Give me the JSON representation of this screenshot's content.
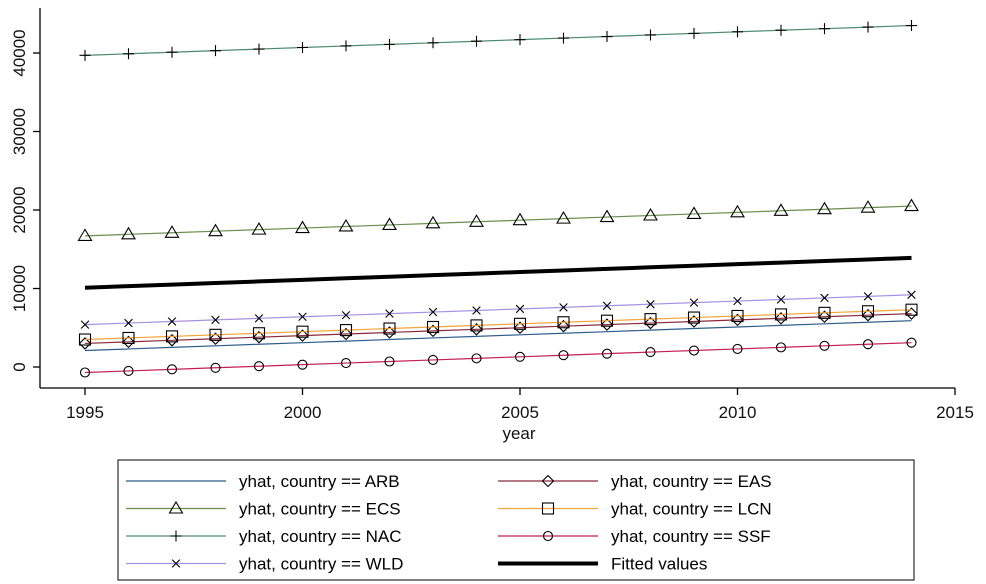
{
  "chart_data": {
    "type": "line",
    "title": "",
    "xlabel": "year",
    "ylabel": "",
    "xlim": [
      1995,
      2015
    ],
    "ylim": [
      0,
      40000
    ],
    "x_ticks": [
      "1995",
      "2000",
      "2005",
      "2010",
      "2015"
    ],
    "y_ticks": [
      "0",
      "10000",
      "20000",
      "30000",
      "40000"
    ],
    "x": [
      1995,
      1996,
      1997,
      1998,
      1999,
      2000,
      2001,
      2002,
      2003,
      2004,
      2005,
      2006,
      2007,
      2008,
      2009,
      2010,
      2011,
      2012,
      2013,
      2014
    ],
    "grid": false,
    "legend_position": "bottom",
    "series": [
      {
        "name": "yhat, country == ARB",
        "color": "#2e5c8a",
        "marker": "none",
        "values": [
          2100,
          2300,
          2500,
          2700,
          2900,
          3100,
          3300,
          3500,
          3700,
          3900,
          4100,
          4300,
          4500,
          4700,
          4900,
          5100,
          5300,
          5500,
          5700,
          5900
        ]
      },
      {
        "name": "yhat, country == EAS",
        "color": "#8b2a3c",
        "marker": "diamond",
        "values": [
          3000,
          3200,
          3400,
          3600,
          3800,
          4000,
          4200,
          4400,
          4600,
          4800,
          5000,
          5200,
          5400,
          5600,
          5800,
          6000,
          6200,
          6400,
          6600,
          6800
        ]
      },
      {
        "name": "yhat, country == ECS",
        "color": "#6b8e4e",
        "marker": "triangle",
        "values": [
          16700,
          16900,
          17100,
          17300,
          17500,
          17700,
          17900,
          18100,
          18300,
          18500,
          18700,
          18900,
          19100,
          19300,
          19500,
          19700,
          19900,
          20100,
          20300,
          20500
        ]
      },
      {
        "name": "yhat, country == LCN",
        "color": "#f2a53a",
        "marker": "square",
        "values": [
          3500,
          3700,
          3900,
          4100,
          4300,
          4500,
          4700,
          4900,
          5100,
          5300,
          5500,
          5700,
          5900,
          6100,
          6300,
          6500,
          6700,
          6900,
          7100,
          7300
        ]
      },
      {
        "name": "yhat, country == NAC",
        "color": "#4a8a6a",
        "marker": "plus",
        "values": [
          39700,
          39900,
          40100,
          40300,
          40500,
          40700,
          40900,
          41100,
          41300,
          41500,
          41700,
          41900,
          42100,
          42300,
          42500,
          42700,
          42900,
          43100,
          43300,
          43500
        ]
      },
      {
        "name": "yhat, country == SSF",
        "color": "#c41e5a",
        "marker": "circle",
        "values": [
          -700,
          -500,
          -300,
          -100,
          100,
          300,
          500,
          700,
          900,
          1100,
          1300,
          1500,
          1700,
          1900,
          2100,
          2300,
          2500,
          2700,
          2900,
          3100
        ]
      },
      {
        "name": "yhat, country == WLD",
        "color": "#a98fe0",
        "marker": "x",
        "values": [
          5400,
          5600,
          5800,
          6000,
          6200,
          6400,
          6600,
          6800,
          7000,
          7200,
          7400,
          7600,
          7800,
          8000,
          8200,
          8400,
          8600,
          8800,
          9000,
          9200
        ]
      },
      {
        "name": "Fitted values",
        "color": "#000000",
        "marker": "none",
        "thick": true,
        "values": [
          10100,
          10300,
          10500,
          10700,
          10900,
          11100,
          11300,
          11500,
          11700,
          11900,
          12100,
          12300,
          12500,
          12700,
          12900,
          13100,
          13300,
          13500,
          13700,
          13900
        ]
      }
    ]
  }
}
